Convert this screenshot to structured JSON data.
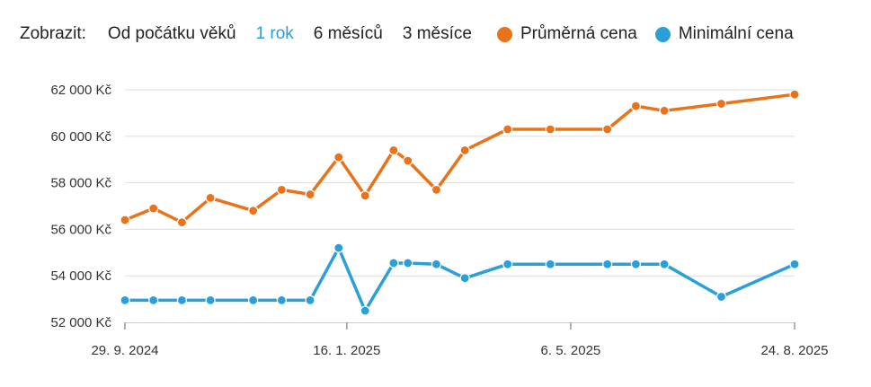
{
  "toolbar": {
    "show_label": "Zobrazit:",
    "ranges": [
      {
        "label": "Od počátku věků",
        "active": false
      },
      {
        "label": "1 rok",
        "active": true
      },
      {
        "label": "6 měsíců",
        "active": false
      },
      {
        "label": "3 měsíce",
        "active": false
      }
    ]
  },
  "colors": {
    "average": "#e8731a",
    "minimum": "#2a9fd8",
    "active_range": "#2a9fd8",
    "grid": "#dddddd",
    "axis": "#999999"
  },
  "chart_data": {
    "type": "line",
    "x_type": "date",
    "xlim": [
      "2024-09-29",
      "2025-08-24"
    ],
    "x_ticks": [
      {
        "date": "2024-09-29",
        "label": "29. 9. 2024"
      },
      {
        "date": "2025-01-16",
        "label": "16. 1. 2025"
      },
      {
        "date": "2025-05-06",
        "label": "6. 5. 2025"
      },
      {
        "date": "2025-08-24",
        "label": "24. 8. 2025"
      }
    ],
    "ylim": [
      52000,
      62000
    ],
    "y_ticks": [
      {
        "value": 52000,
        "label": "52 000 Kč"
      },
      {
        "value": 54000,
        "label": "54 000 Kč"
      },
      {
        "value": 56000,
        "label": "56 000 Kč"
      },
      {
        "value": 58000,
        "label": "58 000 Kč"
      },
      {
        "value": 60000,
        "label": "60 000 Kč"
      },
      {
        "value": 62000,
        "label": "62 000 Kč"
      }
    ],
    "grid": true,
    "legend_position": "top-right",
    "series": [
      {
        "key": "average",
        "name": "Průměrná cena",
        "color": "#e8731a",
        "points": [
          {
            "x": "2024-09-29",
            "y": 56400
          },
          {
            "x": "2024-10-13",
            "y": 56900
          },
          {
            "x": "2024-10-27",
            "y": 56300
          },
          {
            "x": "2024-11-10",
            "y": 57350
          },
          {
            "x": "2024-12-01",
            "y": 56800
          },
          {
            "x": "2024-12-15",
            "y": 57700
          },
          {
            "x": "2024-12-29",
            "y": 57500
          },
          {
            "x": "2025-01-12",
            "y": 59100
          },
          {
            "x": "2025-01-25",
            "y": 57450
          },
          {
            "x": "2025-02-08",
            "y": 59400
          },
          {
            "x": "2025-02-15",
            "y": 58950
          },
          {
            "x": "2025-03-01",
            "y": 57700
          },
          {
            "x": "2025-03-15",
            "y": 59400
          },
          {
            "x": "2025-04-05",
            "y": 60300
          },
          {
            "x": "2025-04-26",
            "y": 60300
          },
          {
            "x": "2025-05-24",
            "y": 60300
          },
          {
            "x": "2025-06-07",
            "y": 61300
          },
          {
            "x": "2025-06-21",
            "y": 61100
          },
          {
            "x": "2025-07-19",
            "y": 61400
          },
          {
            "x": "2025-08-24",
            "y": 61800
          }
        ]
      },
      {
        "key": "minimum",
        "name": "Minimální cena",
        "color": "#2a9fd8",
        "points": [
          {
            "x": "2024-09-29",
            "y": 52950
          },
          {
            "x": "2024-10-13",
            "y": 52950
          },
          {
            "x": "2024-10-27",
            "y": 52950
          },
          {
            "x": "2024-11-10",
            "y": 52950
          },
          {
            "x": "2024-12-01",
            "y": 52950
          },
          {
            "x": "2024-12-15",
            "y": 52950
          },
          {
            "x": "2024-12-29",
            "y": 52950
          },
          {
            "x": "2025-01-12",
            "y": 55200
          },
          {
            "x": "2025-01-25",
            "y": 52500
          },
          {
            "x": "2025-02-08",
            "y": 54550
          },
          {
            "x": "2025-02-15",
            "y": 54550
          },
          {
            "x": "2025-03-01",
            "y": 54500
          },
          {
            "x": "2025-03-15",
            "y": 53900
          },
          {
            "x": "2025-04-05",
            "y": 54500
          },
          {
            "x": "2025-04-26",
            "y": 54500
          },
          {
            "x": "2025-05-24",
            "y": 54500
          },
          {
            "x": "2025-06-07",
            "y": 54500
          },
          {
            "x": "2025-06-21",
            "y": 54500
          },
          {
            "x": "2025-07-19",
            "y": 53100
          },
          {
            "x": "2025-08-24",
            "y": 54500
          }
        ]
      }
    ]
  }
}
